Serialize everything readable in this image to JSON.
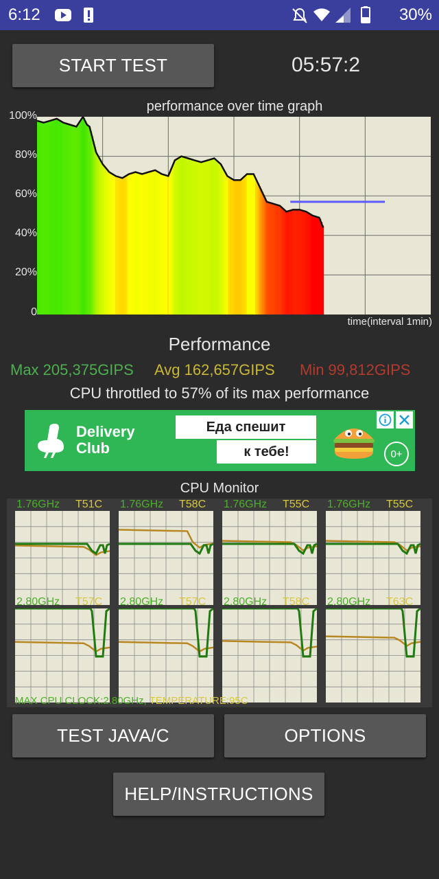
{
  "status_bar": {
    "time": "6:12",
    "battery": "30%",
    "icons": [
      "youtube-icon",
      "alert-icon",
      "mute-icon",
      "wifi-icon",
      "signal-icon",
      "battery-icon"
    ]
  },
  "controls": {
    "start_label": "START TEST",
    "timer": "05:57:2",
    "test_java_label": "TEST JAVA/C",
    "options_label": "OPTIONS",
    "help_label": "HELP/INSTRUCTIONS"
  },
  "graph": {
    "title": "performance over time graph",
    "x_label": "time(interval 1min)",
    "y_ticks": [
      "100%",
      "80%",
      "60%",
      "40%",
      "20%",
      "0"
    ]
  },
  "chart_data": {
    "type": "area",
    "title": "performance over time graph",
    "xlabel": "time(interval 1min)",
    "ylabel": "",
    "ylim": [
      0,
      100
    ],
    "x": [
      0,
      0.5,
      1,
      1.5,
      2,
      2.5,
      3,
      3.3,
      3.5,
      3.8,
      4,
      4.5,
      5,
      5.5,
      6,
      6.5,
      7,
      7.5,
      8,
      8.5,
      9,
      9.5,
      10,
      10.5,
      11,
      11.5,
      12,
      12.5,
      13,
      13.5,
      14,
      14.5,
      15,
      15.5,
      16,
      16.5,
      17,
      17.5,
      18,
      18.5,
      19,
      19.5,
      20,
      20.5,
      21,
      21.5,
      21.8
    ],
    "series": [
      {
        "values": [
          98,
          97,
          98,
          99,
          97,
          96,
          95,
          98,
          100,
          96,
          95,
          82,
          76,
          72,
          70,
          69,
          71,
          72,
          71,
          72,
          73,
          71,
          70,
          78,
          80,
          79,
          78,
          77,
          78,
          79,
          76,
          70,
          68,
          68,
          71,
          71,
          64,
          57,
          56,
          55,
          52,
          53,
          53,
          52,
          50,
          49,
          44
        ]
      }
    ],
    "reference_line": 57,
    "grid": true,
    "color_scale": "green (high) to red (low)"
  },
  "performance": {
    "heading": "Performance",
    "max": "Max 205,375GIPS",
    "avg": "Avg 162,657GIPS",
    "min": "Min 99,812GIPS",
    "throttle_text": "CPU throttled to 57% of its max performance"
  },
  "ad": {
    "brand_line1": "Delivery",
    "brand_line2": "Club",
    "slogan_line1": "Еда спешит",
    "slogan_line2": "к тебе!",
    "age": "0+"
  },
  "cpu_monitor": {
    "title": "CPU Monitor",
    "cores": [
      {
        "freq": "1.76GHz",
        "temp": "T51C",
        "freq_level": 0.53,
        "temp_level": 0.53
      },
      {
        "freq": "1.76GHz",
        "temp": "T58C",
        "freq_level": 0.53,
        "temp_level": 0.61
      },
      {
        "freq": "1.76GHz",
        "temp": "T55C",
        "freq_level": 0.53,
        "temp_level": 0.58
      },
      {
        "freq": "1.76GHz",
        "temp": "T55C",
        "freq_level": 0.53,
        "temp_level": 0.58
      },
      {
        "freq": "2.80GHz",
        "temp": "T57C",
        "freq_level": 1.0,
        "temp_level": 0.6
      },
      {
        "freq": "2.80GHz",
        "temp": "T57C",
        "freq_level": 1.0,
        "temp_level": 0.6
      },
      {
        "freq": "2.80GHz",
        "temp": "T58C",
        "freq_level": 1.0,
        "temp_level": 0.61
      },
      {
        "freq": "2.80GHz",
        "temp": "T63C",
        "freq_level": 1.0,
        "temp_level": 0.66
      }
    ],
    "footer_clock": "MAX CPU CLOCK:2.80GHz,",
    "footer_temp": "TEMPERATURE:95C"
  },
  "colors": {
    "status_bar": "#3a3f9e",
    "button": "#575757",
    "max_green": "#4caf50",
    "avg_yellow": "#c9b735",
    "min_red": "#b23a2e",
    "core_freq": "#4caf2a",
    "core_temp": "#d8c840",
    "freq_line": "#1f7a10",
    "temp_line": "#b98722"
  }
}
